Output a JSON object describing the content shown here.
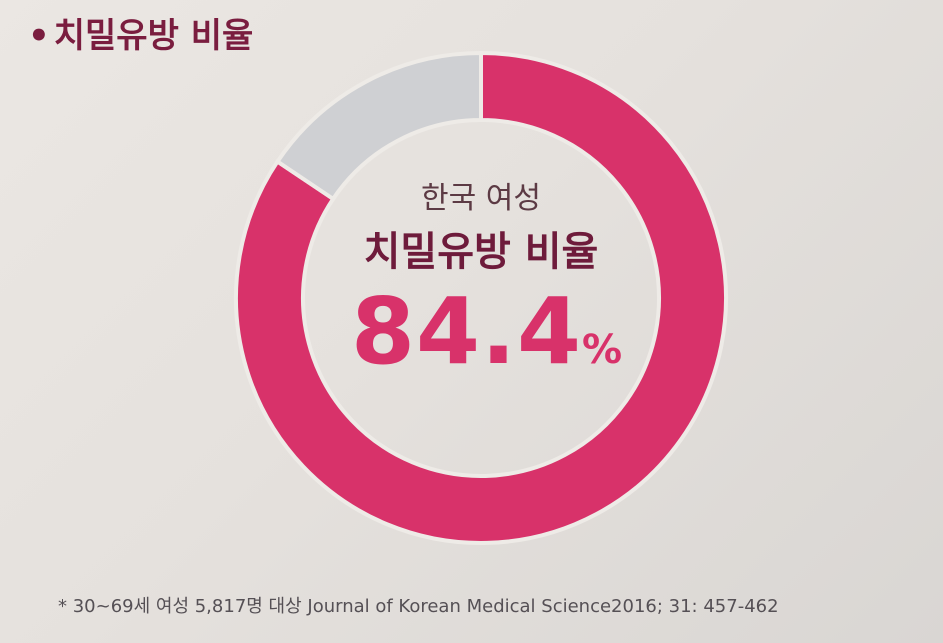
{
  "heading": {
    "bullet": "•",
    "text": "치밀유방 비율"
  },
  "chart_data": {
    "type": "pie",
    "donut": true,
    "categories": [
      "치밀유방",
      ""
    ],
    "values": [
      84.4,
      15.6
    ],
    "colors": [
      "#d8326a",
      "#cfd0d3"
    ],
    "subtitle": "한국 여성",
    "title": "치밀유방 비율",
    "value_label": "84.4",
    "unit": "%",
    "legend": "none",
    "grid": false
  },
  "footnote": "* 30~69세 여성 5,817명 대상 Journal of Korean Medical Science2016; 31: 457-462"
}
